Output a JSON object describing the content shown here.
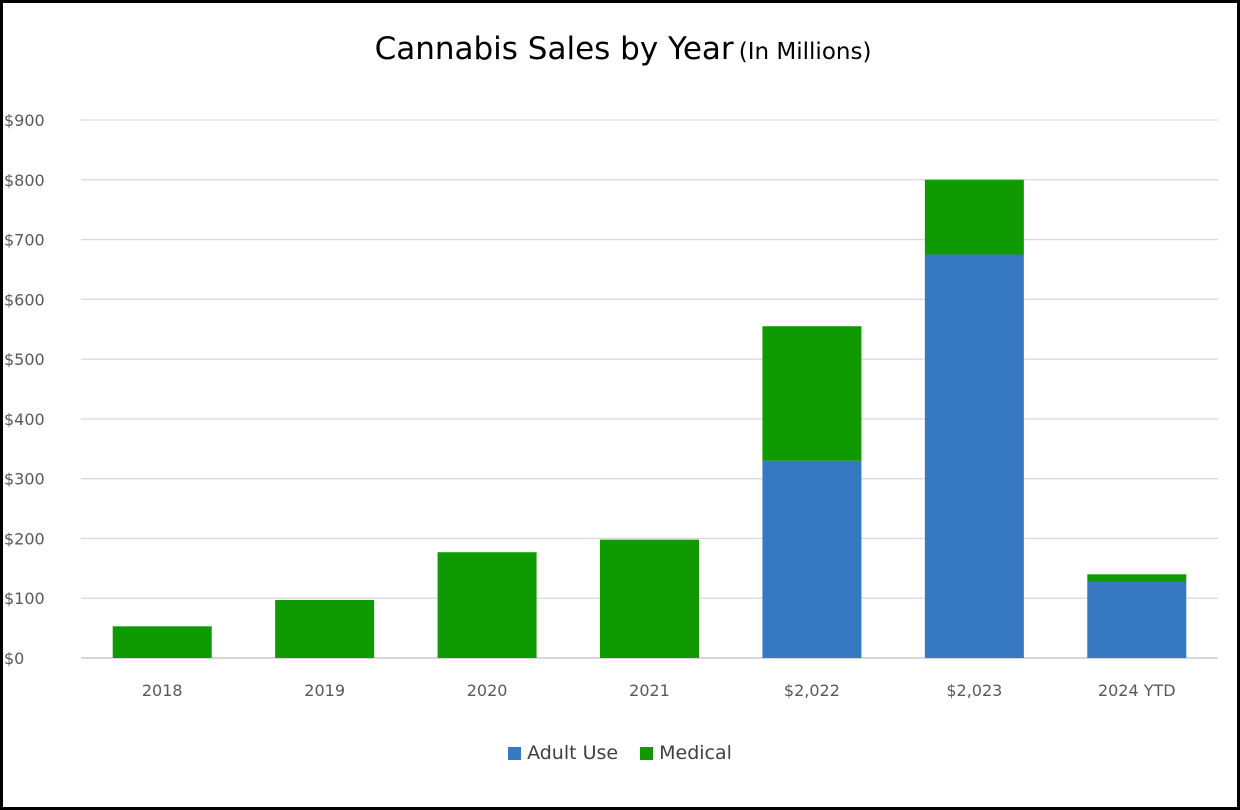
{
  "chart_data": {
    "type": "bar",
    "stacked": true,
    "title": "Cannabis Sales by Year",
    "subtitle": "(In Millions)",
    "categories": [
      "2018",
      "2019",
      "2020",
      "2021",
      "$2,022",
      "$2,023",
      "2024 YTD"
    ],
    "series": [
      {
        "name": "Adult Use",
        "color": "#3778C2",
        "values": [
          0,
          0,
          0,
          0,
          330,
          675,
          128
        ]
      },
      {
        "name": "Medical",
        "color": "#0E9A00",
        "values": [
          53,
          97,
          177,
          198,
          225,
          125,
          12
        ]
      }
    ],
    "ylim": [
      0,
      900
    ],
    "yticks": [
      "$0",
      "$100",
      "$200",
      "$300",
      "$400",
      "$500",
      "$600",
      "$700",
      "$800",
      "$900"
    ],
    "xlabel": "",
    "ylabel": "",
    "grid": true,
    "legend": "bottom-center"
  }
}
